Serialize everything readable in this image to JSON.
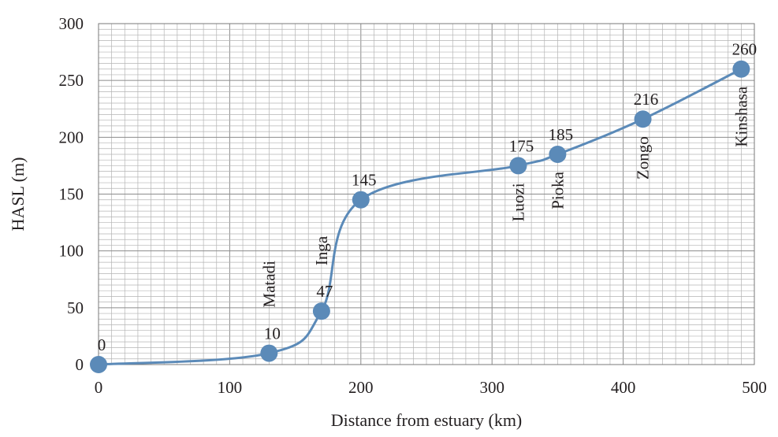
{
  "chart_data": {
    "type": "line",
    "xlabel": "Distance from estuary (km)",
    "ylabel": "HASL (m)",
    "xlim": [
      0,
      500
    ],
    "ylim": [
      0,
      300
    ],
    "x_ticks": [
      "0",
      "100",
      "200",
      "300",
      "400",
      "500"
    ],
    "y_ticks": [
      "0",
      "50",
      "100",
      "150",
      "200",
      "250",
      "300"
    ],
    "grid": true,
    "legend": "none",
    "series": [
      {
        "color": "#5b8ab8",
        "points": [
          {
            "x": 0,
            "y": 0,
            "label": "0",
            "place": ""
          },
          {
            "x": 130,
            "y": 10,
            "label": "10",
            "place": "Matadi"
          },
          {
            "x": 170,
            "y": 47,
            "label": "47",
            "place": "Inga"
          },
          {
            "x": 200,
            "y": 145,
            "label": "145",
            "place": ""
          },
          {
            "x": 320,
            "y": 175,
            "label": "175",
            "place": "Luozi"
          },
          {
            "x": 350,
            "y": 185,
            "label": "185",
            "place": "Pioka"
          },
          {
            "x": 415,
            "y": 216,
            "label": "216",
            "place": "Zongo"
          },
          {
            "x": 490,
            "y": 260,
            "label": "260",
            "place": "Kinshasa"
          }
        ]
      }
    ]
  }
}
